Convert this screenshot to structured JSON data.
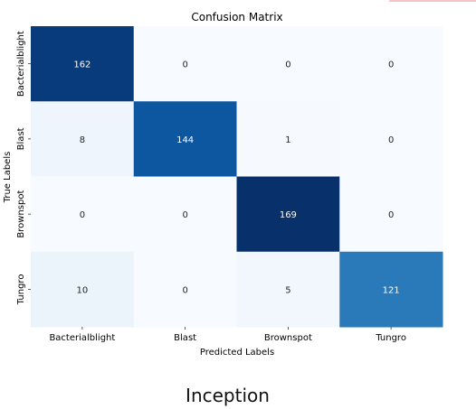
{
  "chart_data": {
    "type": "heatmap",
    "title": "Confusion Matrix",
    "xlabel": "Predicted Labels",
    "ylabel": "True Labels",
    "x_categories": [
      "Bacterialblight",
      "Blast",
      "Brownspot",
      "Tungro"
    ],
    "y_categories": [
      "Bacterialblight",
      "Blast",
      "Brownspot",
      "Tungro"
    ],
    "values": [
      [
        162,
        0,
        0,
        0
      ],
      [
        8,
        144,
        1,
        0
      ],
      [
        0,
        0,
        169,
        0
      ],
      [
        10,
        0,
        5,
        121
      ]
    ],
    "colormap": "Blues",
    "colorbar": false
  },
  "caption": "Inception"
}
